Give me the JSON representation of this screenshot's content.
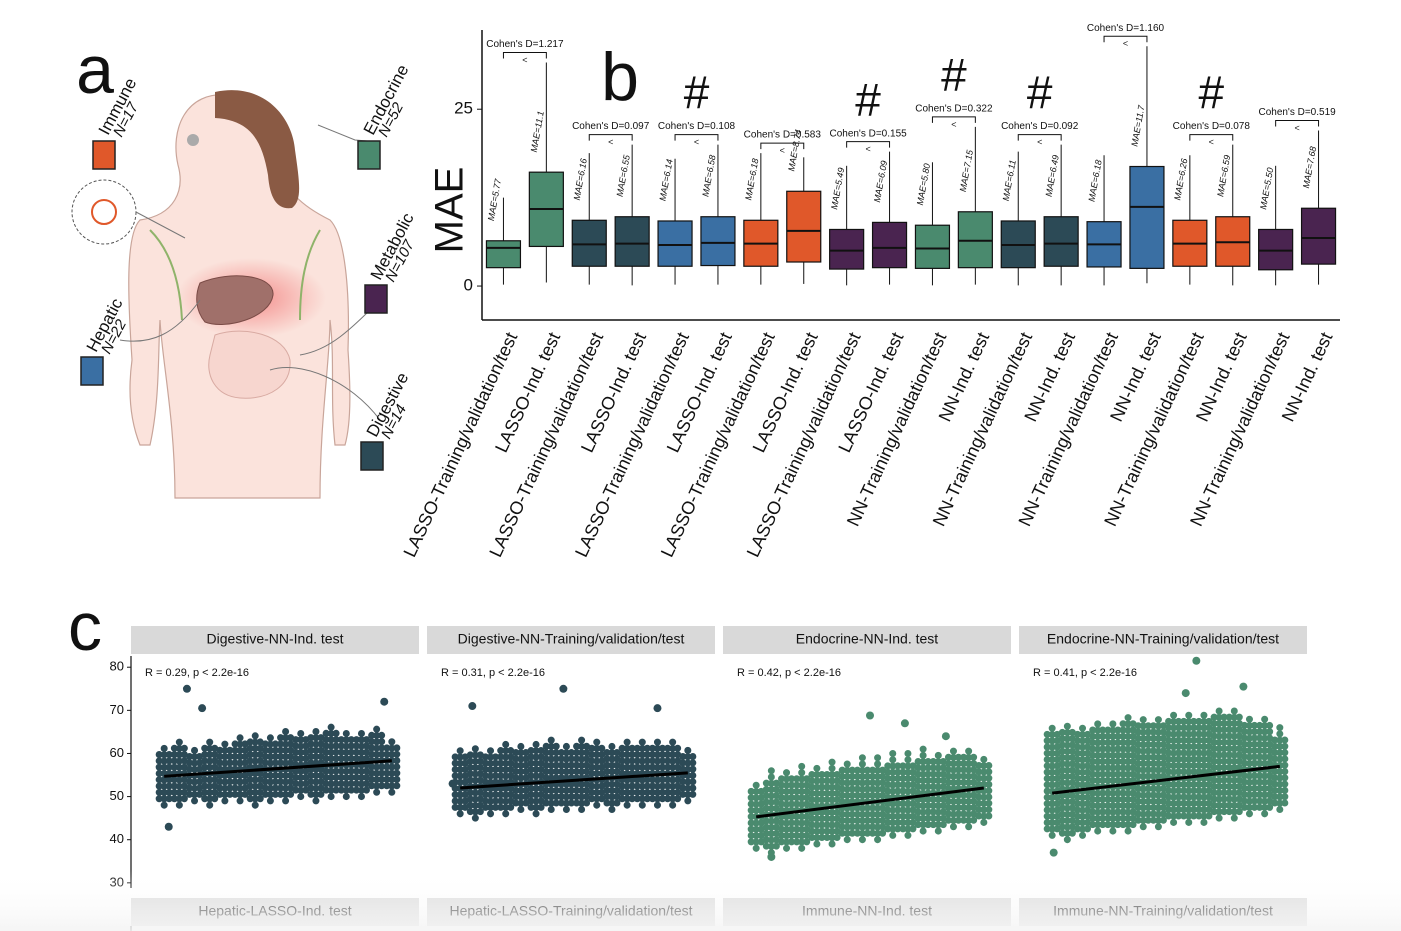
{
  "panel_letters": [
    "a",
    "b",
    "c"
  ],
  "panel_a": {
    "systems": [
      {
        "name": "Immune",
        "n": "N=17",
        "color": "#e0582a"
      },
      {
        "name": "Endocrine",
        "n": "N=52",
        "color": "#4a8a6e"
      },
      {
        "name": "Metabolic",
        "n": "N=107",
        "color": "#4a2450"
      },
      {
        "name": "Hepatic",
        "n": "N=22",
        "color": "#3a6fa3"
      },
      {
        "name": "Digestive",
        "n": "N=14",
        "color": "#2c4a56"
      }
    ]
  },
  "chart_data": [
    {
      "type": "box",
      "y_label": "MAE",
      "ylim": [
        -4.8,
        36.2
      ],
      "yticks": [
        0,
        25
      ],
      "categories": [
        "LASSO-Training/validation/test",
        "LASSO-Ind. test",
        "LASSO-Training/validation/test",
        "LASSO-Ind. test",
        "LASSO-Training/validation/test",
        "LASSO-Ind. test",
        "LASSO-Training/validation/test",
        "LASSO-Ind. test",
        "LASSO-Training/validation/test",
        "LASSO-Ind. test",
        "NN-Training/validation/test",
        "NN-Ind. test",
        "NN-Training/validation/test",
        "NN-Ind. test",
        "NN-Training/validation/test",
        "NN-Ind. test",
        "NN-Training/validation/test",
        "NN-Ind. test",
        "NN-Training/validation/test",
        "NN-Ind. test"
      ],
      "colors": [
        "#4a8a6e",
        "#4a8a6e",
        "#2c4a56",
        "#2c4a56",
        "#3a6fa3",
        "#3a6fa3",
        "#e0582a",
        "#e0582a",
        "#4a2450",
        "#4a2450",
        "#4a8a6e",
        "#4a8a6e",
        "#2c4a56",
        "#2c4a56",
        "#3a6fa3",
        "#3a6fa3",
        "#e0582a",
        "#e0582a",
        "#4a2450",
        "#4a2450"
      ],
      "whislo": [
        0.2,
        0.5,
        0.2,
        0.1,
        0.2,
        0.2,
        0.2,
        0.3,
        0.1,
        0.2,
        0.1,
        0.2,
        0.1,
        0.1,
        0.1,
        0.4,
        0.2,
        0.1,
        0.1,
        0.2
      ],
      "q1": [
        2.6,
        5.6,
        2.8,
        2.8,
        2.8,
        2.9,
        2.8,
        3.4,
        2.4,
        2.6,
        2.5,
        2.6,
        2.6,
        2.8,
        2.7,
        2.5,
        2.8,
        2.8,
        2.3,
        3.1
      ],
      "med": [
        5.4,
        10.9,
        5.9,
        6.0,
        5.8,
        6.1,
        6.0,
        7.8,
        5.0,
        5.4,
        5.3,
        6.4,
        5.8,
        6.0,
        5.9,
        11.2,
        6.0,
        6.2,
        5.0,
        6.8
      ],
      "q3": [
        6.4,
        16.1,
        9.3,
        9.8,
        9.2,
        9.8,
        9.3,
        13.4,
        8.0,
        9.0,
        8.6,
        10.5,
        9.2,
        9.8,
        9.1,
        16.9,
        9.3,
        9.8,
        8.0,
        11.0
      ],
      "whishi": [
        12.5,
        31.6,
        18.8,
        20.0,
        18.0,
        20.0,
        18.8,
        18.2,
        17.0,
        19.0,
        17.5,
        22.5,
        19.0,
        20.0,
        18.5,
        33.9,
        18.5,
        20.0,
        17.0,
        22.0
      ],
      "mae_labels": [
        "MAE=5.77",
        "MAE=11.1",
        "MAE=6.16",
        "MAE=6.55",
        "MAE=6.14",
        "MAE=6.58",
        "MAE=6.18",
        "MAE=8.74",
        "MAE=5.49",
        "MAE=6.09",
        "MAE=5.80",
        "MAE=7.15",
        "MAE=6.11",
        "MAE=6.49",
        "MAE=6.18",
        "MAE=11.7",
        "MAE=6.26",
        "MAE=6.59",
        "MAE=5.50",
        "MAE=7.68"
      ],
      "pairs": [
        {
          "cohen": "Cohen's D=1.217",
          "sign": "<"
        },
        {
          "cohen": "Cohen's D=0.097",
          "sign": "<"
        },
        {
          "cohen": "Cohen's D=0.108",
          "sign": "<",
          "mark": "#"
        },
        {
          "cohen": "Cohen's D=0.583",
          "sign": "<"
        },
        {
          "cohen": "Cohen's D=0.155",
          "sign": "<",
          "mark": "#"
        },
        {
          "cohen": "Cohen's D=0.322",
          "sign": "<",
          "mark": "#"
        },
        {
          "cohen": "Cohen's D=0.092",
          "sign": "<",
          "mark": "#"
        },
        {
          "cohen": "Cohen's D=1.160",
          "sign": "<"
        },
        {
          "cohen": "Cohen's D=0.078",
          "sign": "<",
          "mark": "#"
        },
        {
          "cohen": "Cohen's D=0.519",
          "sign": "<"
        }
      ]
    },
    {
      "type": "facets",
      "ylim": [
        28.8,
        82.6
      ],
      "yticks": [
        30,
        40,
        50,
        60,
        70,
        80
      ],
      "xlim": [
        -1,
        16
      ],
      "facets": [
        {
          "title": "Digestive-NN-Ind. test",
          "stat": "R = 0.29, p < 2.2e-16",
          "color": "#2c4a56",
          "columns": {
            "x": [
              0,
              1,
              2,
              3,
              4,
              5,
              6,
              7,
              8,
              9,
              10,
              11,
              12,
              13,
              14,
              15
            ],
            "low": [
              48,
              48,
              49,
              48,
              49,
              49,
              48,
              49,
              49,
              50,
              49,
              50,
              50,
              50,
              51,
              51
            ],
            "high": [
              62,
              63,
              62,
              64,
              63,
              64,
              65,
              64,
              66,
              65,
              66,
              67,
              66,
              65,
              66,
              63
            ]
          },
          "points": {
            "x": [
              0.3,
              1.5,
              2.5,
              14.5
            ],
            "y": [
              43,
              75,
              70.5,
              72
            ]
          },
          "fit": {
            "x": [
              0,
              15
            ],
            "y": [
              54.7,
              58.3
            ]
          }
        },
        {
          "title": "Digestive-NN-Training/validation/test",
          "stat": "R = 0.31, p < 2.2e-16",
          "color": "#2c4a56",
          "columns": {
            "x": [
              0,
              1,
              2,
              3,
              4,
              5,
              6,
              7,
              8,
              9,
              10,
              11,
              12,
              13,
              14,
              15
            ],
            "low": [
              46,
              45,
              46,
              46,
              47,
              46,
              47,
              47,
              47,
              48,
              47,
              48,
              48,
              48,
              48,
              49
            ],
            "high": [
              61,
              62,
              62,
              63,
              63,
              63,
              64,
              63,
              64,
              64,
              63,
              64,
              64,
              63,
              64,
              62
            ]
          },
          "points": {
            "x": [
              -0.5,
              0.8,
              6.8,
              13
            ],
            "y": [
              53,
              71,
              75,
              70.5
            ]
          },
          "fit": {
            "x": [
              0,
              15
            ],
            "y": [
              52,
              55.5
            ]
          }
        },
        {
          "title": "Endocrine-NN-Ind. test",
          "stat": "R = 0.42, p < 2.2e-16",
          "color": "#4a8a6e",
          "columns": {
            "x": [
              0,
              1,
              2,
              3,
              4,
              5,
              6,
              7,
              8,
              9,
              10,
              11,
              12,
              13,
              14,
              15
            ],
            "low": [
              38,
              37,
              38,
              38,
              39,
              39,
              40,
              40,
              40,
              41,
              41,
              42,
              42,
              43,
              43,
              44
            ],
            "high": [
              54,
              56,
              56,
              57,
              57,
              58,
              58,
              59,
              59,
              60,
              60,
              61,
              60,
              61,
              61,
              60
            ]
          },
          "points": {
            "x": [
              7.5,
              9.8,
              1,
              12.5
            ],
            "y": [
              68.8,
              67,
              36,
              64
            ]
          },
          "fit": {
            "x": [
              0,
              15
            ],
            "y": [
              45.3,
              52
            ]
          }
        },
        {
          "title": "Endocrine-NN-Training/validation/test",
          "stat": "R = 0.41, p < 2.2e-16",
          "color": "#4a8a6e",
          "columns": {
            "x": [
              0,
              1,
              2,
              3,
              4,
              5,
              6,
              7,
              8,
              9,
              10,
              11,
              12,
              13,
              14,
              15
            ],
            "low": [
              41,
              40,
              41,
              42,
              42,
              42,
              43,
              43,
              44,
              44,
              44,
              45,
              45,
              46,
              46,
              47
            ],
            "high": [
              66,
              67,
              67,
              68,
              68,
              69,
              69,
              69,
              70,
              70,
              70,
              70,
              70,
              69,
              68,
              66
            ]
          },
          "points": {
            "x": [
              0.1,
              9.5,
              8.8,
              12.6
            ],
            "y": [
              37,
              81.5,
              74,
              75.5
            ]
          },
          "fit": {
            "x": [
              0,
              15
            ],
            "y": [
              50.8,
              57
            ]
          }
        },
        {
          "title": "Hepatic-LASSO-Ind. test"
        },
        {
          "title": "Hepatic-LASSO-Training/validation/test"
        },
        {
          "title": "Immune-NN-Ind. test"
        },
        {
          "title": "Immune-NN-Training/validation/test"
        }
      ]
    }
  ]
}
